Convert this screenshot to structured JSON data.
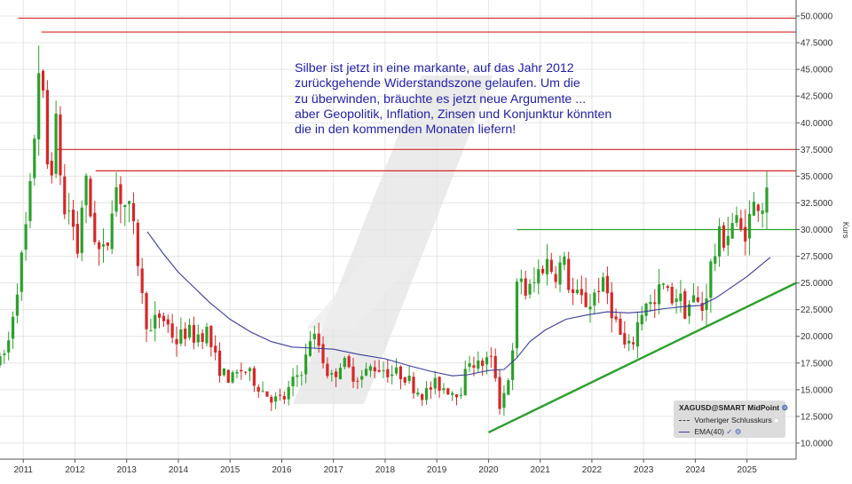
{
  "annotation": {
    "lines": [
      "Silber ist jetzt in eine markante, auf das Jahr 2012",
      "zurückgehende Widerstandszone gelaufen. Um die",
      "zu überwinden, bräuchte es jetzt neue Argumente ...",
      "aber Geopolitik, Inflation, Zinsen und Konjunktur könnten",
      "die in den kommenden Monaten liefern!"
    ]
  },
  "legend": {
    "title": "XAGUSD@SMART MidPoint",
    "prev_close": "Vorheriger Schlusskurs",
    "ema": "EMA(40)"
  },
  "colors": {
    "up": "#2ca02c",
    "down": "#d62728",
    "ema": "#3b3b9e",
    "resistance": "#d62728",
    "support": "#2ca02c",
    "grid": "#e6e6e6"
  },
  "chart_data": {
    "type": "candlestick",
    "ylabel": "Kurs",
    "ylim": [
      8.5,
      51.5
    ],
    "xlim": [
      2010.55,
      2025.95
    ],
    "y_ticks": [
      "10.0000",
      "12.5000",
      "15.0000",
      "17.5000",
      "20.0000",
      "22.5000",
      "25.0000",
      "27.5000",
      "30.0000",
      "32.5000",
      "35.0000",
      "37.5000",
      "40.0000",
      "42.5000",
      "45.0000",
      "47.5000",
      "50.0000"
    ],
    "x_ticks": [
      "2011",
      "2012",
      "2013",
      "2014",
      "2015",
      "2016",
      "2017",
      "2018",
      "2019",
      "2020",
      "2021",
      "2022",
      "2023",
      "2024",
      "2025"
    ],
    "price_path": [
      [
        2010.55,
        17.5
      ],
      [
        2010.7,
        19.0
      ],
      [
        2010.85,
        24.0
      ],
      [
        2011.0,
        28.0
      ],
      [
        2011.15,
        34.0
      ],
      [
        2011.32,
        47.0
      ],
      [
        2011.45,
        36.0
      ],
      [
        2011.55,
        36.5
      ],
      [
        2011.68,
        41.0
      ],
      [
        2011.75,
        31.0
      ],
      [
        2011.9,
        32.0
      ],
      [
        2012.05,
        28.0
      ],
      [
        2012.18,
        35.0
      ],
      [
        2012.3,
        31.5
      ],
      [
        2012.45,
        28.0
      ],
      [
        2012.6,
        27.5
      ],
      [
        2012.75,
        34.5
      ],
      [
        2012.9,
        33.0
      ],
      [
        2013.05,
        31.5
      ],
      [
        2013.2,
        28.0
      ],
      [
        2013.3,
        23.5
      ],
      [
        2013.45,
        20.0
      ],
      [
        2013.6,
        22.0
      ],
      [
        2013.75,
        21.5
      ],
      [
        2013.95,
        19.5
      ],
      [
        2014.15,
        20.5
      ],
      [
        2014.3,
        20.0
      ],
      [
        2014.55,
        20.5
      ],
      [
        2014.7,
        18.0
      ],
      [
        2014.85,
        16.5
      ],
      [
        2015.05,
        16.0
      ],
      [
        2015.25,
        17.0
      ],
      [
        2015.45,
        16.0
      ],
      [
        2015.65,
        14.8
      ],
      [
        2015.9,
        14.0
      ],
      [
        2016.05,
        14.2
      ],
      [
        2016.25,
        16.0
      ],
      [
        2016.45,
        17.5
      ],
      [
        2016.55,
        20.0
      ],
      [
        2016.7,
        19.5
      ],
      [
        2016.85,
        17.0
      ],
      [
        2016.98,
        16.0
      ],
      [
        2017.15,
        17.8
      ],
      [
        2017.35,
        16.5
      ],
      [
        2017.55,
        16.2
      ],
      [
        2017.75,
        17.2
      ],
      [
        2017.95,
        17.0
      ],
      [
        2018.15,
        16.5
      ],
      [
        2018.35,
        16.5
      ],
      [
        2018.55,
        15.3
      ],
      [
        2018.75,
        14.5
      ],
      [
        2018.95,
        15.5
      ],
      [
        2019.15,
        15.2
      ],
      [
        2019.35,
        14.8
      ],
      [
        2019.5,
        15.2
      ],
      [
        2019.62,
        18.0
      ],
      [
        2019.8,
        17.2
      ],
      [
        2019.95,
        17.8
      ],
      [
        2020.1,
        17.5
      ],
      [
        2020.22,
        13.5
      ],
      [
        2020.35,
        15.5
      ],
      [
        2020.48,
        18.5
      ],
      [
        2020.58,
        27.0
      ],
      [
        2020.7,
        24.0
      ],
      [
        2020.85,
        24.5
      ],
      [
        2021.0,
        26.5
      ],
      [
        2021.12,
        27.0
      ],
      [
        2021.28,
        26.0
      ],
      [
        2021.45,
        27.0
      ],
      [
        2021.6,
        24.0
      ],
      [
        2021.75,
        23.5
      ],
      [
        2021.95,
        23.0
      ],
      [
        2022.15,
        25.0
      ],
      [
        2022.3,
        24.0
      ],
      [
        2022.45,
        21.5
      ],
      [
        2022.62,
        19.0
      ],
      [
        2022.75,
        18.8
      ],
      [
        2022.9,
        21.5
      ],
      [
        2023.05,
        23.5
      ],
      [
        2023.2,
        22.5
      ],
      [
        2023.35,
        25.0
      ],
      [
        2023.5,
        23.5
      ],
      [
        2023.65,
        24.0
      ],
      [
        2023.8,
        22.5
      ],
      [
        2023.95,
        23.5
      ],
      [
        2024.05,
        23.0
      ],
      [
        2024.15,
        22.5
      ],
      [
        2024.3,
        26.5
      ],
      [
        2024.45,
        29.0
      ],
      [
        2024.6,
        29.5
      ],
      [
        2024.75,
        31.0
      ],
      [
        2024.9,
        29.5
      ],
      [
        2025.05,
        31.0
      ],
      [
        2025.2,
        33.0
      ],
      [
        2025.32,
        32.5
      ],
      [
        2025.42,
        36.0
      ]
    ],
    "ema": [
      [
        2013.4,
        29.8
      ],
      [
        2013.7,
        27.8
      ],
      [
        2014.0,
        26.0
      ],
      [
        2014.3,
        24.6
      ],
      [
        2014.6,
        23.2
      ],
      [
        2015.0,
        21.6
      ],
      [
        2015.4,
        20.4
      ],
      [
        2015.8,
        19.5
      ],
      [
        2016.2,
        19.0
      ],
      [
        2016.6,
        18.9
      ],
      [
        2017.0,
        18.8
      ],
      [
        2017.5,
        18.3
      ],
      [
        2018.0,
        17.9
      ],
      [
        2018.5,
        17.2
      ],
      [
        2018.9,
        16.7
      ],
      [
        2019.3,
        16.3
      ],
      [
        2019.6,
        16.4
      ],
      [
        2020.0,
        16.8
      ],
      [
        2020.3,
        16.9
      ],
      [
        2020.55,
        18.0
      ],
      [
        2020.8,
        19.5
      ],
      [
        2021.1,
        20.6
      ],
      [
        2021.5,
        21.6
      ],
      [
        2021.9,
        22.0
      ],
      [
        2022.3,
        22.3
      ],
      [
        2022.7,
        22.2
      ],
      [
        2023.0,
        22.3
      ],
      [
        2023.4,
        22.6
      ],
      [
        2023.8,
        22.8
      ],
      [
        2024.1,
        22.9
      ],
      [
        2024.4,
        23.6
      ],
      [
        2024.7,
        24.6
      ],
      [
        2025.0,
        25.6
      ],
      [
        2025.2,
        26.4
      ],
      [
        2025.45,
        27.4
      ]
    ],
    "resistance_lines": [
      {
        "x1": 2010.9,
        "x2": 2025.95,
        "y": 49.8
      },
      {
        "x1": 2011.35,
        "x2": 2025.95,
        "y": 48.5
      },
      {
        "x1": 2011.65,
        "x2": 2025.95,
        "y": 37.5
      },
      {
        "x1": 2012.4,
        "x2": 2025.95,
        "y": 35.5
      }
    ],
    "horizontal_support": {
      "x1": 2020.55,
      "x2": 2025.95,
      "y": 30.0
    },
    "trendline": {
      "x1": 2020.0,
      "y1": 11.0,
      "x2": 2025.95,
      "y2": 25.0
    }
  }
}
